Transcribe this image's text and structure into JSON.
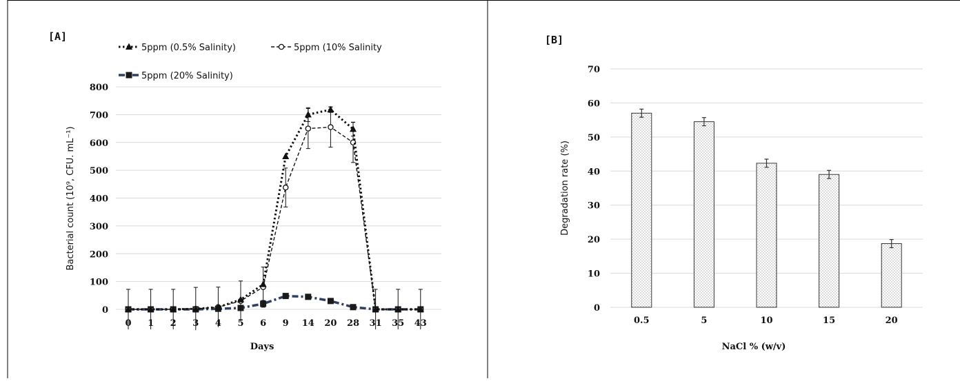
{
  "panels": [
    {
      "label": "[A]",
      "chart_data": {
        "type": "line",
        "x": [
          "0",
          "1",
          "2",
          "3",
          "4",
          "5",
          "6",
          "9",
          "14",
          "20",
          "28",
          "31",
          "35",
          "43"
        ],
        "xlabel": "Days",
        "ylabel": "Bacterial count (10⁹, CFU. mL⁻¹)",
        "ylim": [
          0,
          800
        ],
        "yticks": [
          0,
          100,
          200,
          300,
          400,
          500,
          600,
          700,
          800
        ],
        "grid": true,
        "legend_position": "top",
        "series": [
          {
            "name": "5ppm (0.5% Salinity)",
            "color": "#111111",
            "marker": "triangle",
            "line_style": "dotted",
            "values": [
              0,
              0,
              0,
              2,
              8,
              35,
              90,
              550,
              700,
              718,
              648,
              0,
              0,
              0
            ],
            "errors": [
              0,
              0,
              0,
              0,
              0,
              0,
              0,
              0,
              25,
              10,
              25,
              0,
              0,
              0
            ]
          },
          {
            "name": "5ppm (10% Salinity",
            "color": "#111111",
            "marker": "circle-open",
            "line_style": "dashed",
            "values": [
              0,
              0,
              0,
              2,
              8,
              30,
              80,
              438,
              650,
              655,
              600,
              0,
              0,
              0
            ],
            "errors": [
              72,
              72,
              72,
              77,
              72,
              72,
              72,
              70,
              72,
              72,
              72,
              72,
              72,
              72
            ]
          },
          {
            "name": "5ppm (20% Salinity)",
            "color": "#2f3f63",
            "marker": "square",
            "line_style": "dash-dot",
            "values": [
              0,
              0,
              0,
              0,
              2,
              5,
              20,
              48,
              45,
              30,
              8,
              0,
              0,
              0
            ],
            "errors": [
              0,
              0,
              0,
              0,
              0,
              0,
              12,
              0,
              0,
              0,
              0,
              0,
              0,
              0
            ]
          }
        ]
      }
    },
    {
      "label": "[B]",
      "chart_data": {
        "type": "bar",
        "categories": [
          "0.5",
          "5",
          "10",
          "15",
          "20"
        ],
        "values": [
          57,
          54.5,
          42.3,
          39,
          18.7
        ],
        "errors": [
          1.2,
          1.2,
          1.2,
          1.2,
          1.2
        ],
        "xlabel": "NaCl % (w/v)",
        "ylabel": "Degradation rate (%)",
        "ylim": [
          0,
          70
        ],
        "yticks": [
          0,
          10,
          20,
          30,
          40,
          50,
          60,
          70
        ],
        "grid": true,
        "bar_fill": "dotted"
      }
    }
  ]
}
